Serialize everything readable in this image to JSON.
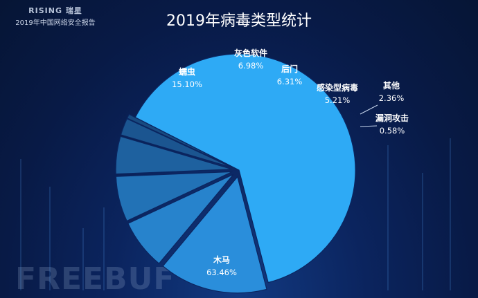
{
  "header": {
    "logo": "RISING 瑞星",
    "report": "2019年中国网络安全报告"
  },
  "watermark": "FREEBUF",
  "chart_data": {
    "type": "pie",
    "title": "2019年病毒类型统计",
    "slices": [
      {
        "name": "木马",
        "value": 63.46,
        "label": "63.46%",
        "color": "#2eaaf5"
      },
      {
        "name": "蠕虫",
        "value": 15.1,
        "label": "15.10%",
        "color": "#2a8edb"
      },
      {
        "name": "灰色软件",
        "value": 6.98,
        "label": "6.98%",
        "color": "#2783cc"
      },
      {
        "name": "后门",
        "value": 6.31,
        "label": "6.31%",
        "color": "#2272b6"
      },
      {
        "name": "感染型病毒",
        "value": 5.21,
        "label": "5.21%",
        "color": "#1e619f"
      },
      {
        "name": "其他",
        "value": 2.36,
        "label": "2.36%",
        "color": "#1b5590"
      },
      {
        "name": "漏洞攻击",
        "value": 0.58,
        "label": "0.58%",
        "color": "#184a80"
      }
    ]
  }
}
